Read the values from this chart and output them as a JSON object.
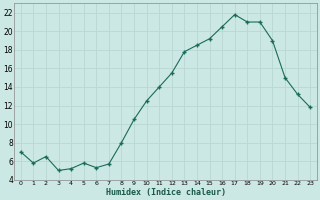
{
  "x": [
    0,
    1,
    2,
    3,
    4,
    5,
    6,
    7,
    8,
    9,
    10,
    11,
    12,
    13,
    14,
    15,
    16,
    17,
    18,
    19,
    20,
    21,
    22,
    23
  ],
  "y": [
    7.0,
    5.8,
    6.5,
    5.0,
    5.2,
    5.8,
    5.3,
    5.7,
    8.0,
    10.5,
    12.5,
    14.0,
    15.5,
    17.8,
    18.5,
    19.2,
    20.5,
    21.8,
    21.0,
    21.0,
    19.0,
    15.0,
    13.2,
    11.8
  ],
  "xlabel": "Humidex (Indice chaleur)",
  "bg_color": "#cce8e4",
  "grid_color": "#b8d8d4",
  "line_color": "#1a6b5a",
  "marker_color": "#1a6b5a",
  "ylim": [
    4,
    23
  ],
  "xlim": [
    -0.5,
    23.5
  ],
  "yticks": [
    4,
    6,
    8,
    10,
    12,
    14,
    16,
    18,
    20,
    22
  ],
  "xticks": [
    0,
    1,
    2,
    3,
    4,
    5,
    6,
    7,
    8,
    9,
    10,
    11,
    12,
    13,
    14,
    15,
    16,
    17,
    18,
    19,
    20,
    21,
    22,
    23
  ]
}
